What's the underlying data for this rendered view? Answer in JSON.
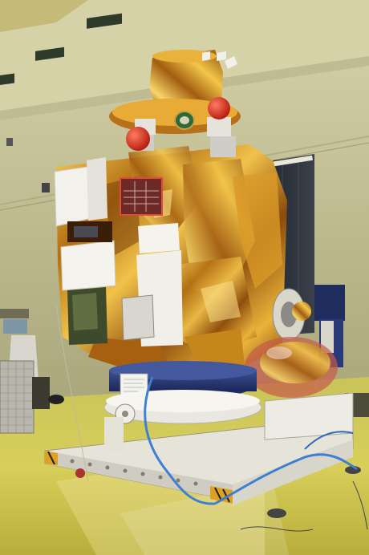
{
  "scene": {
    "subject": "spacecraft-on-integration-stand",
    "setting": "clean-room-hall",
    "palette": {
      "ceiling": "#d6d2a8",
      "wall": "#c9c59a",
      "floor": "#d8cf5a",
      "foil_gold": "#c98a1c",
      "foil_bright": "#f3c64a",
      "foil_dark": "#6b3b0a",
      "white_blanket": "#f2f1ec",
      "fixture_white": "#ece9e0",
      "ring_blue": "#2d3f7c",
      "cable_blue": "#3d7fd0",
      "red_cap": "#d42a1a",
      "solar_panel": "#232a33"
    }
  },
  "labels": {}
}
